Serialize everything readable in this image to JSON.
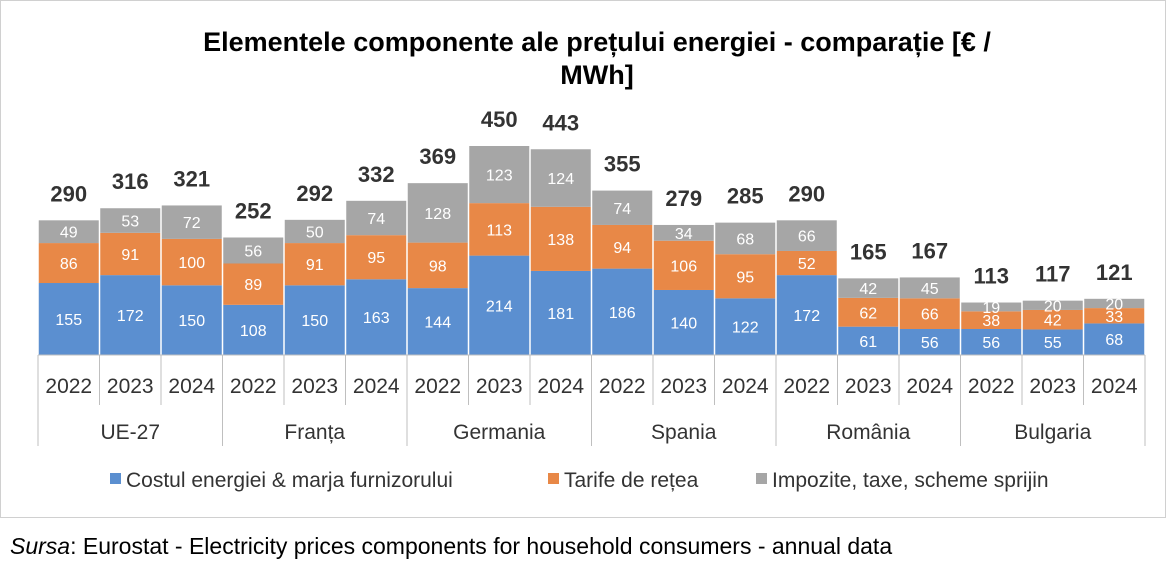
{
  "chart_data": {
    "type": "bar",
    "stacked": true,
    "title": "Elementele componente ale prețului energiei - comparație [€ / MWh]",
    "title_lines": [
      "Elementele componente ale prețului energiei - comparație [€ /",
      "MWh]"
    ],
    "groups": [
      {
        "name": "UE-27",
        "years": [
          "2022",
          "2023",
          "2024"
        ],
        "totals": [
          "290",
          "316",
          "321"
        ],
        "energy": [
          155,
          172,
          150
        ],
        "network": [
          86,
          91,
          100
        ],
        "taxes": [
          49,
          53,
          72
        ]
      },
      {
        "name": "Franța",
        "years": [
          "2022",
          "2023",
          "2024"
        ],
        "totals": [
          "252",
          "292",
          "332"
        ],
        "energy": [
          108,
          150,
          163
        ],
        "network": [
          89,
          91,
          95
        ],
        "taxes": [
          56,
          50,
          74
        ]
      },
      {
        "name": "Germania",
        "years": [
          "2022",
          "2023",
          "2024"
        ],
        "totals": [
          "369",
          "450",
          "443"
        ],
        "energy": [
          144,
          214,
          181
        ],
        "network": [
          98,
          113,
          138
        ],
        "taxes": [
          128,
          123,
          124
        ]
      },
      {
        "name": "Spania",
        "years": [
          "2022",
          "2023",
          "2024"
        ],
        "totals": [
          "355",
          "279",
          "285"
        ],
        "energy": [
          186,
          140,
          122
        ],
        "network": [
          94,
          106,
          95
        ],
        "taxes": [
          74,
          34,
          68
        ]
      },
      {
        "name": "România",
        "years": [
          "2022",
          "2023",
          "2024"
        ],
        "totals": [
          "290",
          "165",
          "167"
        ],
        "energy": [
          172,
          61,
          56
        ],
        "network": [
          52,
          62,
          66
        ],
        "taxes": [
          66,
          42,
          45
        ]
      },
      {
        "name": "Bulgaria",
        "years": [
          "2022",
          "2023",
          "2024"
        ],
        "totals": [
          "113",
          "117",
          "121"
        ],
        "energy": [
          56,
          55,
          68
        ],
        "network": [
          38,
          42,
          33
        ],
        "taxes": [
          19,
          20,
          20
        ]
      }
    ],
    "series": [
      {
        "key": "energy",
        "name": "Costul energiei & marja furnizorului",
        "color": "#5b8fd0"
      },
      {
        "key": "network",
        "name": "Tarife de rețea",
        "color": "#e88847"
      },
      {
        "key": "taxes",
        "name": "Impozite, taxe, scheme sprijin",
        "color": "#a6a6a6"
      }
    ],
    "ylim": [
      0,
      450
    ],
    "grid": false,
    "legend_position": "bottom"
  },
  "source": {
    "label": "Sursa",
    "text": ": Eurostat - Electricity prices components for household consumers - annual data"
  }
}
